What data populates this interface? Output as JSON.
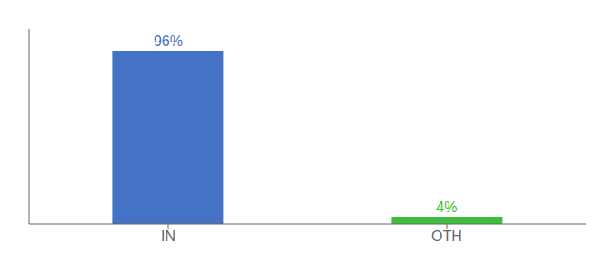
{
  "chart_data": {
    "type": "bar",
    "categories": [
      "IN",
      "OTH"
    ],
    "values": [
      96,
      4
    ],
    "value_labels": [
      "96%",
      "4%"
    ],
    "colors": [
      "#4472c4",
      "#3dbf3d"
    ],
    "ylim": [
      0,
      108
    ],
    "data_labels": true,
    "tick_labels": "x"
  }
}
